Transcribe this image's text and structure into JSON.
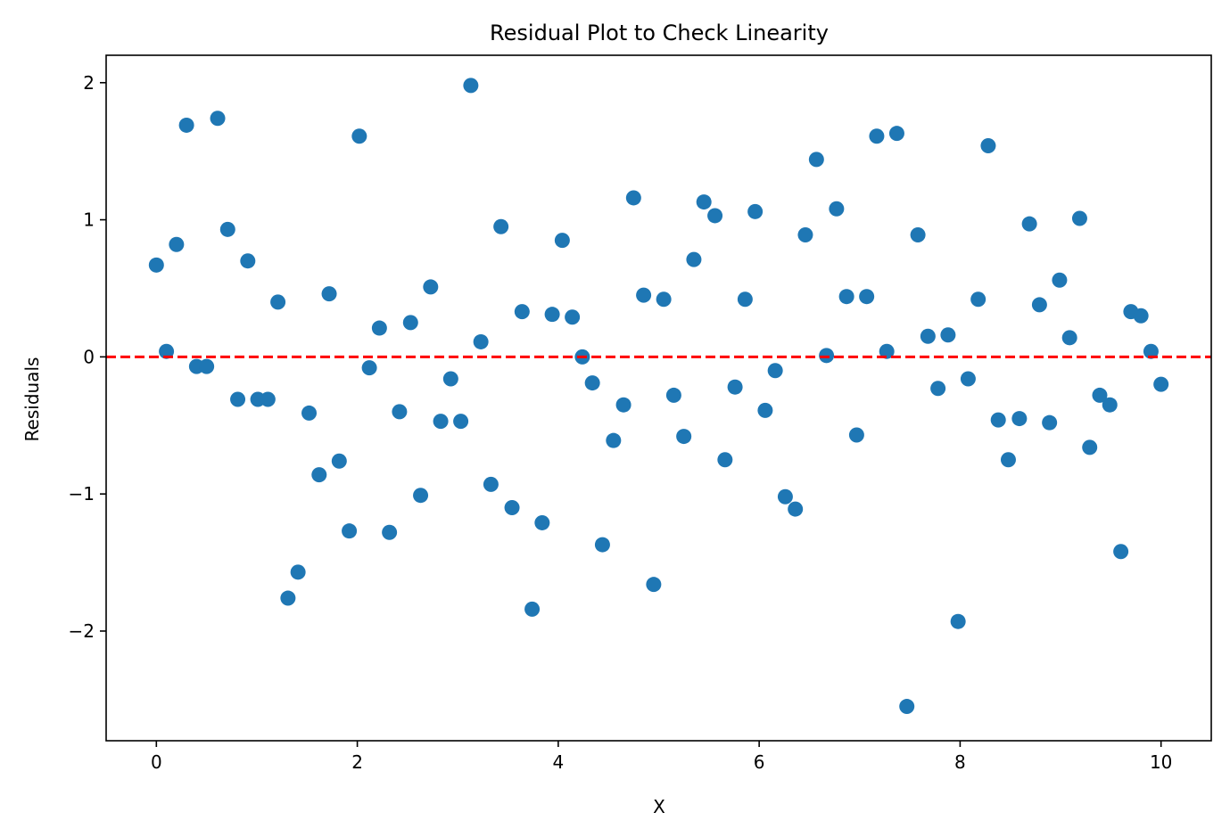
{
  "chart_data": {
    "type": "scatter",
    "title": "Residual Plot to Check Linearity",
    "xlabel": "X",
    "ylabel": "Residuals",
    "xlim": [
      -0.5,
      10.5
    ],
    "ylim": [
      -2.8,
      2.2
    ],
    "xticks": [
      0,
      2,
      4,
      6,
      8,
      10
    ],
    "yticks": [
      -2,
      -1,
      0,
      1,
      2
    ],
    "xtick_labels": [
      "0",
      "2",
      "4",
      "6",
      "8",
      "10"
    ],
    "ytick_labels": [
      "−2",
      "−1",
      "0",
      "1",
      "2"
    ],
    "grid": false,
    "reference_line": {
      "y": 0,
      "style": "dashed",
      "color": "#ff0000"
    },
    "point_color": "#1f77b4",
    "x": [
      0.0,
      0.1,
      0.2,
      0.3,
      0.4,
      0.5,
      0.61,
      0.71,
      0.81,
      0.91,
      1.01,
      1.11,
      1.21,
      1.31,
      1.41,
      1.52,
      1.62,
      1.72,
      1.82,
      1.92,
      2.02,
      2.12,
      2.22,
      2.32,
      2.42,
      2.53,
      2.63,
      2.73,
      2.83,
      2.93,
      3.03,
      3.13,
      3.23,
      3.33,
      3.43,
      3.54,
      3.64,
      3.74,
      3.84,
      3.94,
      4.04,
      4.14,
      4.24,
      4.34,
      4.44,
      4.55,
      4.65,
      4.75,
      4.85,
      4.95,
      5.05,
      5.15,
      5.25,
      5.35,
      5.45,
      5.56,
      5.66,
      5.76,
      5.86,
      5.96,
      6.06,
      6.16,
      6.26,
      6.36,
      6.46,
      6.57,
      6.67,
      6.77,
      6.87,
      6.97,
      7.07,
      7.17,
      7.27,
      7.37,
      7.47,
      7.58,
      7.68,
      7.78,
      7.88,
      7.98,
      8.08,
      8.18,
      8.28,
      8.38,
      8.48,
      8.59,
      8.69,
      8.79,
      8.89,
      8.99,
      9.09,
      9.19,
      9.29,
      9.39,
      9.49,
      9.6,
      9.7,
      9.8,
      9.9,
      10.0
    ],
    "y": [
      0.67,
      0.04,
      0.82,
      1.69,
      -0.07,
      -0.07,
      1.74,
      0.93,
      -0.31,
      0.7,
      -0.31,
      -0.31,
      0.4,
      -1.76,
      -1.57,
      -0.41,
      -0.86,
      0.46,
      -0.76,
      -1.27,
      1.61,
      -0.08,
      0.21,
      -1.28,
      -0.4,
      0.25,
      -1.01,
      0.51,
      -0.47,
      -0.16,
      -0.47,
      1.98,
      0.11,
      -0.93,
      0.95,
      -1.1,
      0.33,
      -1.84,
      -1.21,
      0.31,
      0.85,
      0.29,
      0.0,
      -0.19,
      -1.37,
      -0.61,
      -0.35,
      1.16,
      0.45,
      -1.66,
      0.42,
      -0.28,
      -0.58,
      0.71,
      1.13,
      1.03,
      -0.75,
      -0.22,
      0.42,
      1.06,
      -0.39,
      -0.1,
      -1.02,
      -1.11,
      0.89,
      1.44,
      0.01,
      1.08,
      0.44,
      -0.57,
      0.44,
      1.61,
      0.04,
      1.63,
      -2.55,
      0.89,
      0.15,
      -0.23,
      0.16,
      -1.93,
      -0.16,
      0.42,
      1.54,
      -0.46,
      -0.75,
      -0.45,
      0.97,
      0.38,
      -0.48,
      0.56,
      0.14,
      1.01,
      -0.66,
      -0.28,
      -0.35,
      -1.42,
      0.33,
      0.3,
      0.04,
      -0.2
    ]
  }
}
